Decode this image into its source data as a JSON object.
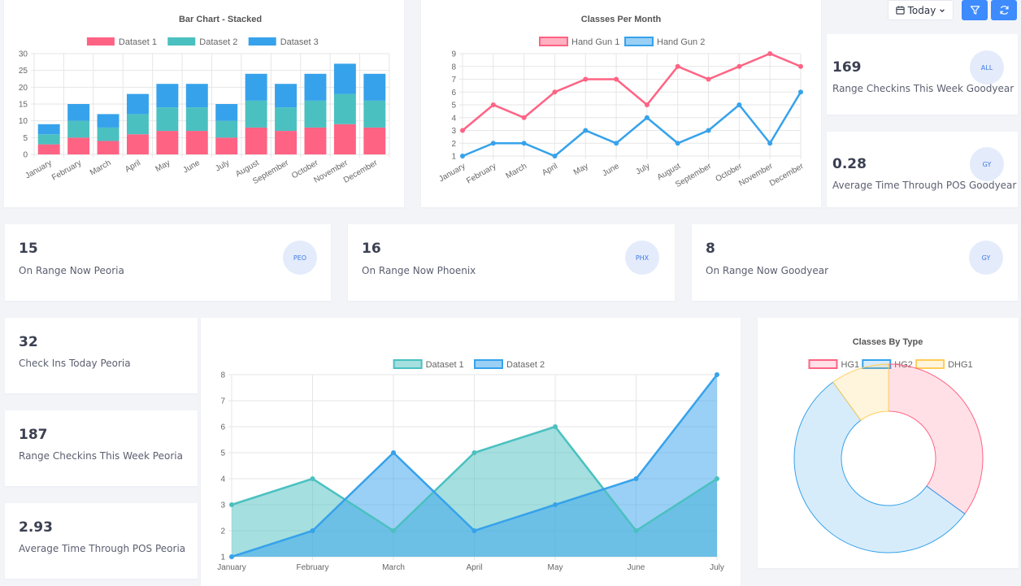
{
  "toolbar": {
    "today_label": "Today",
    "calendar_icon": "calendar-icon",
    "chevron_icon": "chevron-down-icon",
    "filter_icon": "filter-icon",
    "refresh_icon": "refresh-icon",
    "button_color": "#3d8bfd"
  },
  "stats": {
    "all_goodyear_week": {
      "value": "169",
      "label": "Range Checkins This Week Goodyear",
      "badge": "ALL"
    },
    "gy_pos_time": {
      "value": "0.28",
      "label": "Average Time Through POS Goodyear",
      "badge": "GY"
    },
    "peoria_now": {
      "value": "15",
      "label": "On Range Now Peoria",
      "badge": "PEO"
    },
    "phoenix_now": {
      "value": "16",
      "label": "On Range Now Phoenix",
      "badge": "PHX"
    },
    "goodyear_now": {
      "value": "8",
      "label": "On Range Now Goodyear",
      "badge": "GY"
    },
    "peoria_today": {
      "value": "32",
      "label": "Check Ins Today Peoria"
    },
    "peoria_week": {
      "value": "187",
      "label": "Range Checkins This Week Peoria"
    },
    "peoria_pos_time": {
      "value": "2.93",
      "label": "Average Time Through POS Peoria"
    }
  },
  "chart_data": [
    {
      "type": "bar",
      "stacked": true,
      "title": "Bar Chart - Stacked",
      "categories": [
        "January",
        "February",
        "March",
        "April",
        "May",
        "June",
        "July",
        "August",
        "September",
        "October",
        "November",
        "December"
      ],
      "series": [
        {
          "name": "Dataset 1",
          "color": "#ff6384",
          "values": [
            3,
            5,
            4,
            6,
            7,
            7,
            5,
            8,
            7,
            8,
            9,
            8
          ]
        },
        {
          "name": "Dataset 2",
          "color": "#4bc0c0",
          "values": [
            3,
            5,
            4,
            6,
            7,
            7,
            5,
            8,
            7,
            8,
            9,
            8
          ]
        },
        {
          "name": "Dataset 3",
          "color": "#36a2eb",
          "values": [
            3,
            5,
            4,
            6,
            7,
            7,
            5,
            8,
            7,
            8,
            9,
            8
          ]
        }
      ],
      "ylim": [
        0,
        30
      ],
      "yticks": [
        0,
        5,
        10,
        15,
        20,
        25,
        30
      ],
      "grid": true,
      "legend": "top"
    },
    {
      "type": "line",
      "title": "Classes Per Month",
      "categories": [
        "January",
        "February",
        "March",
        "April",
        "May",
        "June",
        "July",
        "August",
        "September",
        "October",
        "November",
        "December"
      ],
      "series": [
        {
          "name": "Hand Gun 1",
          "color": "#ff6384",
          "values": [
            3,
            5,
            4,
            6,
            7,
            7,
            5,
            8,
            7,
            8,
            9,
            8
          ]
        },
        {
          "name": "Hand Gun 2",
          "color": "#36a2eb",
          "values": [
            1,
            2,
            2,
            1,
            3,
            2,
            4,
            2,
            3,
            5,
            2,
            6
          ]
        }
      ],
      "ylim": [
        1,
        9
      ],
      "yticks": [
        1,
        2,
        3,
        4,
        5,
        6,
        7,
        8,
        9
      ],
      "grid": true,
      "legend": "top"
    },
    {
      "type": "area",
      "title": "",
      "categories": [
        "January",
        "February",
        "March",
        "April",
        "May",
        "June",
        "July"
      ],
      "series": [
        {
          "name": "Dataset 1",
          "color": "#4bc0c0",
          "values": [
            3,
            4,
            2,
            5,
            6,
            2,
            4
          ]
        },
        {
          "name": "Dataset 2",
          "color": "#36a2eb",
          "values": [
            1,
            2,
            5,
            2,
            3,
            4,
            8
          ]
        }
      ],
      "ylim": [
        1,
        8
      ],
      "yticks": [
        1,
        2,
        3,
        4,
        5,
        6,
        7,
        8
      ],
      "grid": true,
      "legend": "top"
    },
    {
      "type": "pie",
      "donut": true,
      "title": "Classes By Type",
      "labels": [
        "HG1",
        "HG2",
        "DHG1"
      ],
      "values": [
        35,
        55,
        10
      ],
      "colors": [
        "#ff6384",
        "#36a2eb",
        "#ffcd56"
      ],
      "legend": "top"
    }
  ]
}
